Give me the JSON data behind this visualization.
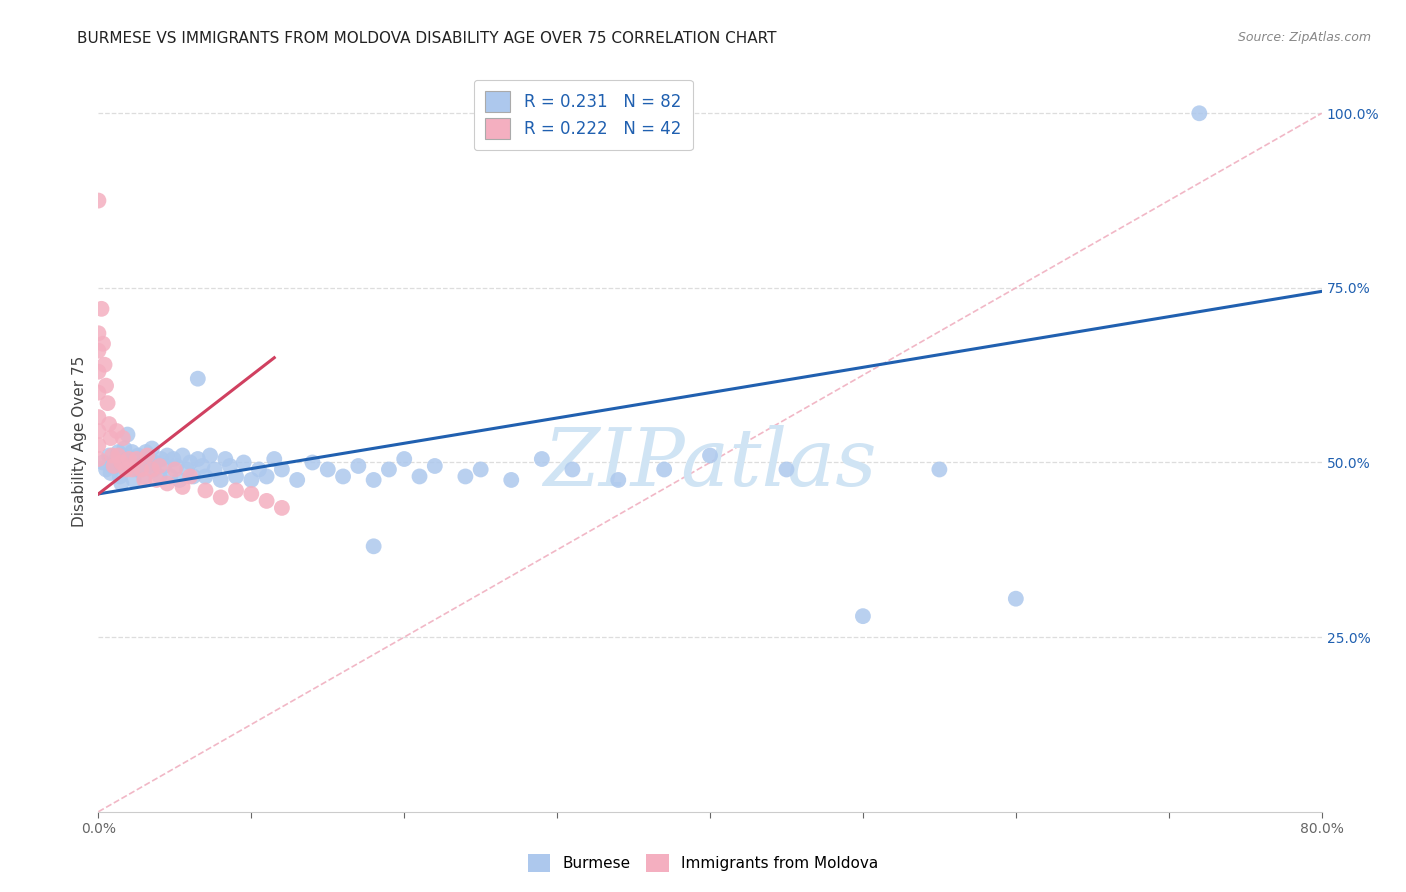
{
  "title": "BURMESE VS IMMIGRANTS FROM MOLDOVA DISABILITY AGE OVER 75 CORRELATION CHART",
  "source": "Source: ZipAtlas.com",
  "xlabel_label": "Burmese",
  "ylabel_label": "Immigrants from Moldova",
  "ylabel_axis": "Disability Age Over 75",
  "xlim": [
    0.0,
    0.8
  ],
  "ylim": [
    0.0,
    1.06
  ],
  "xticks": [
    0.0,
    0.1,
    0.2,
    0.3,
    0.4,
    0.5,
    0.6,
    0.7,
    0.8
  ],
  "yticks_right": [
    0.25,
    0.5,
    0.75,
    1.0
  ],
  "yticklabels_right": [
    "25.0%",
    "50.0%",
    "75.0%",
    "100.0%"
  ],
  "legend_blue_label": "R = 0.231   N = 82",
  "legend_pink_label": "R = 0.222   N = 42",
  "blue_color": "#adc8ed",
  "pink_color": "#f4afc0",
  "blue_line_color": "#2060b0",
  "pink_line_color": "#d04060",
  "diag_line_color": "#f0b0c0",
  "watermark": "ZIPatlas",
  "watermark_color": "#d0e4f4",
  "background_color": "#ffffff",
  "grid_color": "#dddddd",
  "title_fontsize": 11,
  "axis_label_fontsize": 11,
  "tick_fontsize": 10,
  "legend_fontsize": 12,
  "source_fontsize": 9,
  "blue_line_x": [
    0.0,
    0.8
  ],
  "blue_line_y": [
    0.455,
    0.745
  ],
  "pink_line_x": [
    0.0,
    0.115
  ],
  "pink_line_y": [
    0.455,
    0.65
  ],
  "diag_line_x": [
    0.0,
    0.8
  ],
  "diag_line_y": [
    0.0,
    1.0
  ],
  "blue_x": [
    0.003,
    0.005,
    0.007,
    0.008,
    0.01,
    0.012,
    0.013,
    0.014,
    0.015,
    0.016,
    0.017,
    0.018,
    0.019,
    0.02,
    0.021,
    0.022,
    0.023,
    0.024,
    0.025,
    0.026,
    0.027,
    0.028,
    0.029,
    0.03,
    0.031,
    0.032,
    0.033,
    0.035,
    0.036,
    0.037,
    0.04,
    0.041,
    0.043,
    0.045,
    0.047,
    0.049,
    0.051,
    0.053,
    0.055,
    0.058,
    0.06,
    0.062,
    0.065,
    0.068,
    0.07,
    0.073,
    0.076,
    0.08,
    0.083,
    0.086,
    0.09,
    0.095,
    0.1,
    0.105,
    0.11,
    0.115,
    0.12,
    0.13,
    0.14,
    0.15,
    0.16,
    0.17,
    0.18,
    0.19,
    0.2,
    0.21,
    0.22,
    0.24,
    0.25,
    0.27,
    0.29,
    0.31,
    0.34,
    0.37,
    0.4,
    0.45,
    0.5,
    0.55,
    0.6,
    0.72,
    0.065,
    0.18
  ],
  "blue_y": [
    0.5,
    0.49,
    0.51,
    0.485,
    0.495,
    0.505,
    0.515,
    0.48,
    0.47,
    0.51,
    0.52,
    0.5,
    0.54,
    0.495,
    0.505,
    0.515,
    0.475,
    0.5,
    0.49,
    0.51,
    0.5,
    0.49,
    0.505,
    0.48,
    0.515,
    0.495,
    0.505,
    0.52,
    0.49,
    0.5,
    0.48,
    0.505,
    0.495,
    0.51,
    0.48,
    0.505,
    0.495,
    0.475,
    0.51,
    0.49,
    0.5,
    0.48,
    0.505,
    0.495,
    0.48,
    0.51,
    0.49,
    0.475,
    0.505,
    0.495,
    0.48,
    0.5,
    0.475,
    0.49,
    0.48,
    0.505,
    0.49,
    0.475,
    0.5,
    0.49,
    0.48,
    0.495,
    0.475,
    0.49,
    0.505,
    0.48,
    0.495,
    0.48,
    0.49,
    0.475,
    0.505,
    0.49,
    0.475,
    0.49,
    0.51,
    0.49,
    0.28,
    0.49,
    0.305,
    1.0,
    0.62,
    0.38
  ],
  "pink_x": [
    0.0,
    0.0,
    0.0,
    0.0,
    0.0,
    0.0,
    0.0,
    0.0,
    0.0,
    0.002,
    0.003,
    0.004,
    0.005,
    0.006,
    0.007,
    0.008,
    0.009,
    0.01,
    0.012,
    0.013,
    0.015,
    0.016,
    0.018,
    0.02,
    0.022,
    0.025,
    0.028,
    0.03,
    0.032,
    0.035,
    0.038,
    0.04,
    0.045,
    0.05,
    0.055,
    0.06,
    0.07,
    0.08,
    0.09,
    0.1,
    0.11,
    0.12
  ],
  "pink_y": [
    0.875,
    0.685,
    0.66,
    0.63,
    0.6,
    0.565,
    0.545,
    0.525,
    0.505,
    0.72,
    0.67,
    0.64,
    0.61,
    0.585,
    0.555,
    0.535,
    0.51,
    0.495,
    0.545,
    0.51,
    0.5,
    0.535,
    0.49,
    0.505,
    0.49,
    0.505,
    0.49,
    0.475,
    0.51,
    0.49,
    0.475,
    0.495,
    0.47,
    0.49,
    0.465,
    0.48,
    0.46,
    0.45,
    0.46,
    0.455,
    0.445,
    0.435
  ]
}
